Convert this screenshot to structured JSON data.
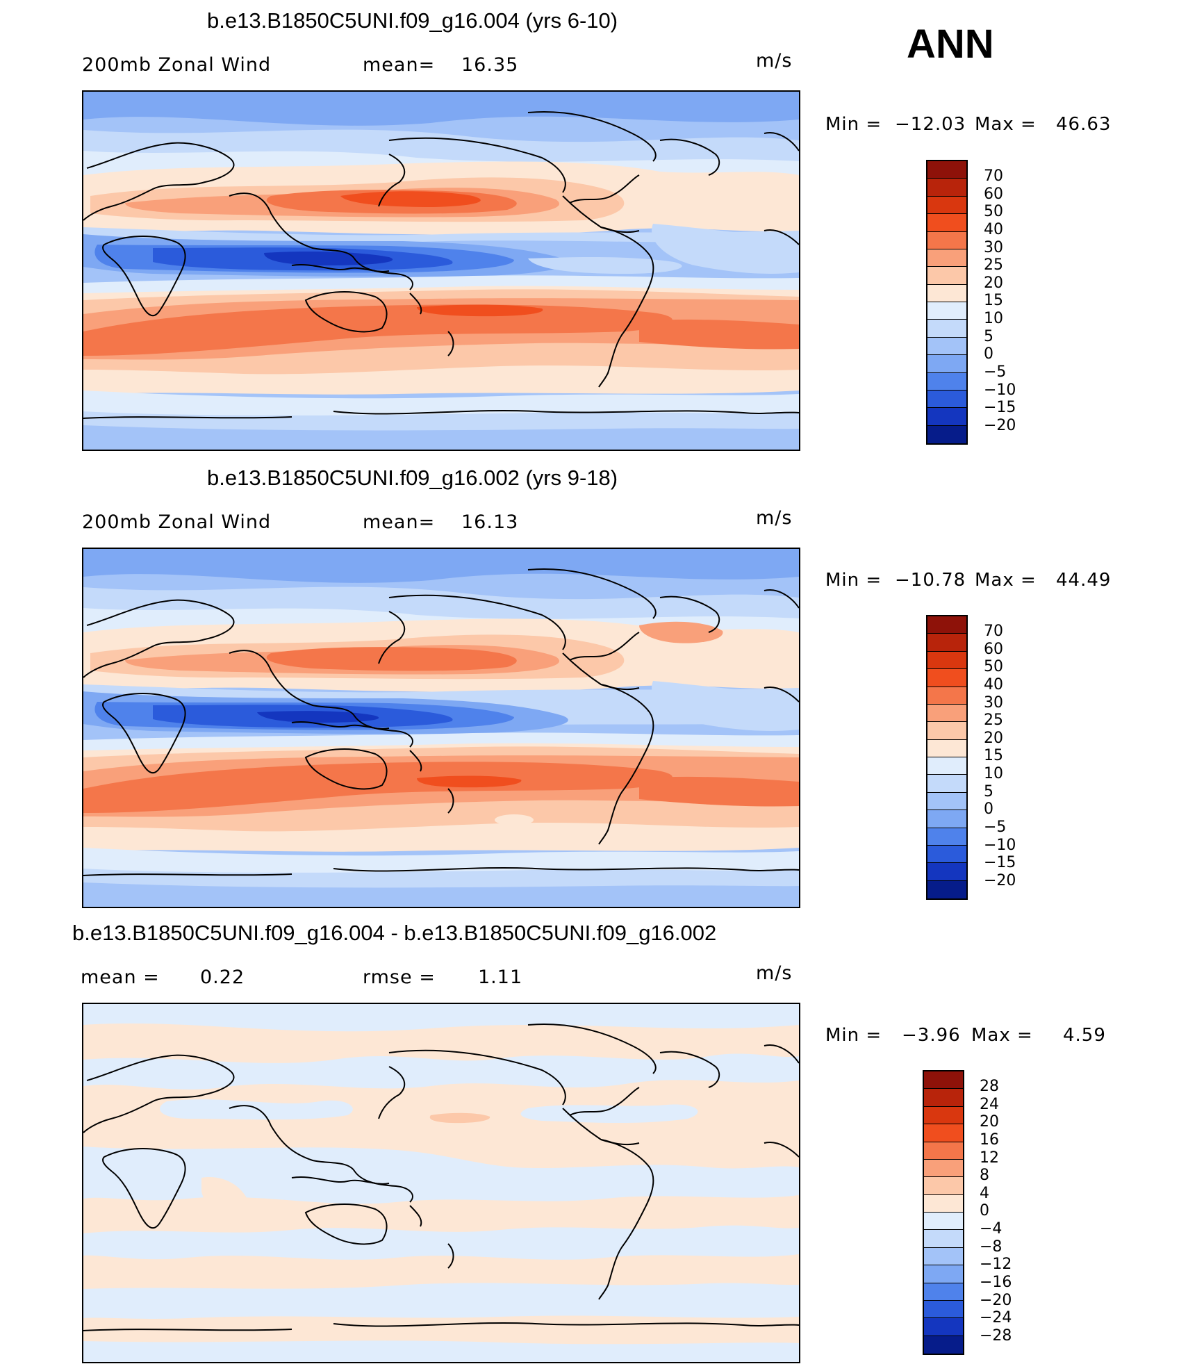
{
  "season_label": "ANN",
  "colors": {
    "pos": [
      "#fde6d4",
      "#fbc7a4",
      "#f79e73",
      "#f26d40",
      "#e64a1c",
      "#c52f0c",
      "#8e1209"
    ],
    "neg": [
      "#d6e8fc",
      "#b3cffa",
      "#84adf5",
      "#5588ec",
      "#2f62dc",
      "#1742c7",
      "#0b28a3",
      "#02137a"
    ],
    "coast": "#000000"
  },
  "panels": [
    {
      "title": "b.e13.B1850C5UNI.f09_g16.004 (yrs 6-10)",
      "variable": "200mb Zonal Wind",
      "stat_label": "mean=",
      "stat_value": "16.35",
      "units": "m/s",
      "min_label": "Min =",
      "min_value": "−12.03",
      "max_label": "Max =",
      "max_value": "46.63",
      "colorbar": {
        "levels": [
          "70",
          "60",
          "50",
          "40",
          "30",
          "25",
          "20",
          "15",
          "10",
          "5",
          "0",
          "−5",
          "−10",
          "−15",
          "−20"
        ],
        "colors": [
          "#8e1209",
          "#b8240b",
          "#d9370f",
          "#f04e1e",
          "#f4764a",
          "#f9a07a",
          "#fcc8a9",
          "#fde7d5",
          "#e0edfc",
          "#c4dafa",
          "#a3c3f8",
          "#7ea8f3",
          "#4f82eb",
          "#2b5bdb",
          "#1436bf",
          "#061c8a"
        ]
      }
    },
    {
      "title": "b.e13.B1850C5UNI.f09_g16.002 (yrs 9-18)",
      "variable": "200mb Zonal Wind",
      "stat_label": "mean=",
      "stat_value": "16.13",
      "units": "m/s",
      "min_label": "Min =",
      "min_value": "−10.78",
      "max_label": "Max =",
      "max_value": "44.49",
      "colorbar": {
        "levels": [
          "70",
          "60",
          "50",
          "40",
          "30",
          "25",
          "20",
          "15",
          "10",
          "5",
          "0",
          "−5",
          "−10",
          "−15",
          "−20"
        ],
        "colors": [
          "#8e1209",
          "#b8240b",
          "#d9370f",
          "#f04e1e",
          "#f4764a",
          "#f9a07a",
          "#fcc8a9",
          "#fde7d5",
          "#e0edfc",
          "#c4dafa",
          "#a3c3f8",
          "#7ea8f3",
          "#4f82eb",
          "#2b5bdb",
          "#1436bf",
          "#061c8a"
        ]
      }
    },
    {
      "title": "b.e13.B1850C5UNI.f09_g16.004 - b.e13.B1850C5UNI.f09_g16.002",
      "variable": "mean =",
      "variable_value": "0.22",
      "stat_label": "rmse =",
      "stat_value": "1.11",
      "units": "m/s",
      "min_label": "Min =",
      "min_value": "−3.96",
      "max_label": "Max =",
      "max_value": "4.59",
      "colorbar": {
        "levels": [
          "28",
          "24",
          "20",
          "16",
          "12",
          "8",
          "4",
          "0",
          "−4",
          "−8",
          "−12",
          "−16",
          "−20",
          "−24",
          "−28"
        ],
        "colors": [
          "#8e1209",
          "#b8240b",
          "#d9370f",
          "#f04e1e",
          "#f4764a",
          "#f9a07a",
          "#fcc8a9",
          "#fde7d5",
          "#e0edfc",
          "#c4dafa",
          "#a3c3f8",
          "#7ea8f3",
          "#4f82eb",
          "#2b5bdb",
          "#1436bf",
          "#061c8a"
        ]
      }
    }
  ]
}
